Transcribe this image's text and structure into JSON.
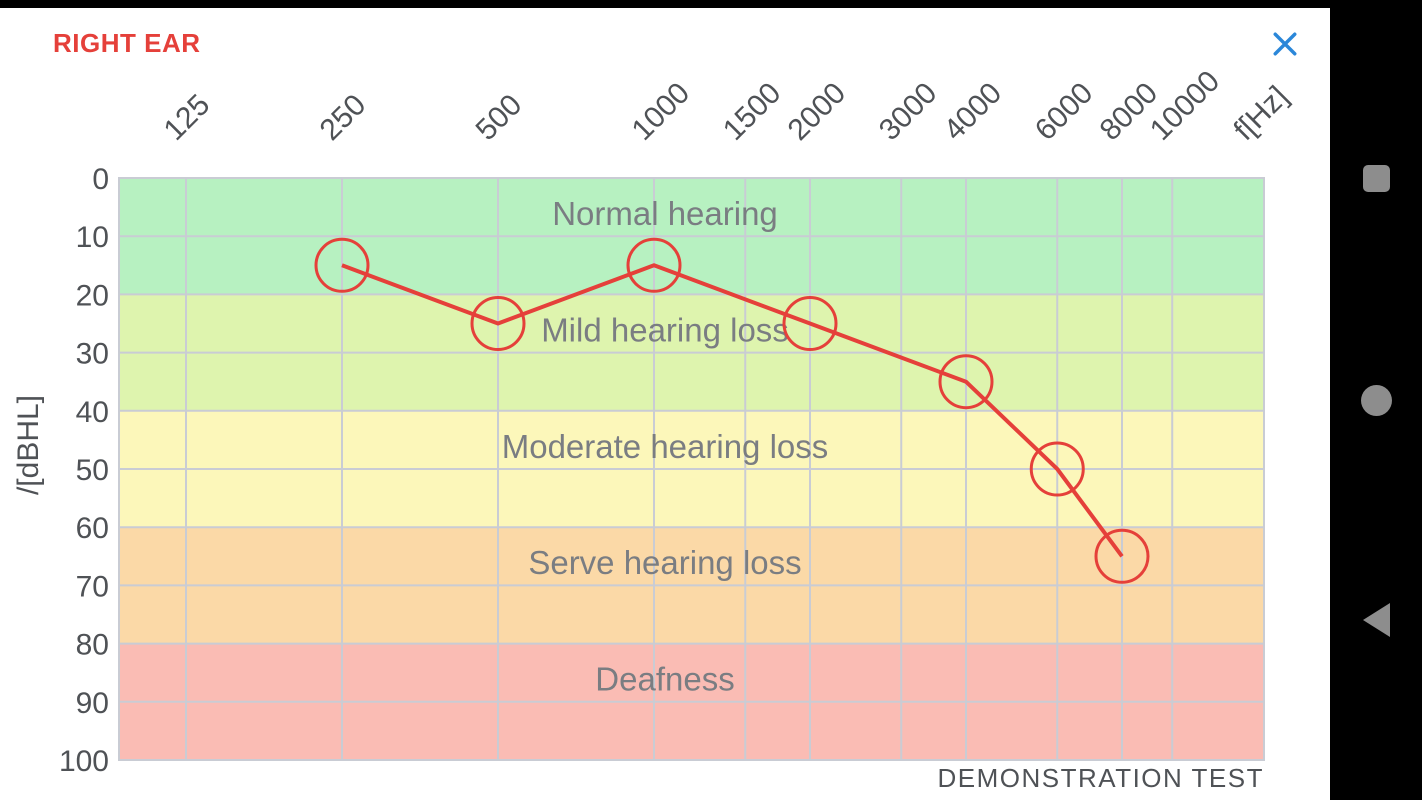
{
  "header": {
    "title": "RIGHT EAR",
    "title_color": "#e5403a",
    "close_icon": "x-close",
    "close_color": "#2b87d9"
  },
  "footer": {
    "note": "DEMONSTRATION TEST"
  },
  "nav_bar": {
    "background": "#000000",
    "icon_color": "#8d8d8d",
    "items": [
      {
        "name": "recents",
        "icon": "square-icon"
      },
      {
        "name": "home",
        "icon": "circle-icon"
      },
      {
        "name": "back",
        "icon": "triangle-left-icon"
      }
    ]
  },
  "chart_data": {
    "type": "line",
    "title": "",
    "xlabel": "f[Hz]",
    "ylabel": "/[dBHL]",
    "x_scale": "log",
    "x_ticks": [
      125,
      250,
      500,
      1000,
      1500,
      2000,
      3000,
      4000,
      6000,
      8000,
      10000
    ],
    "y_ticks": [
      0,
      10,
      20,
      30,
      40,
      50,
      60,
      70,
      80,
      90,
      100
    ],
    "ylim": [
      0,
      100
    ],
    "y_increases_downward": true,
    "grid": true,
    "grid_color": "#c9ccd4",
    "tick_color": "#4f5256",
    "band_label_color": "#7a7d82",
    "bands": [
      {
        "label": "Normal hearing",
        "from": 0,
        "to": 20,
        "color": "#b7f1c1"
      },
      {
        "label": "Mild hearing loss",
        "from": 20,
        "to": 40,
        "color": "#def4ae"
      },
      {
        "label": "Moderate hearing loss",
        "from": 40,
        "to": 60,
        "color": "#fcf7ba"
      },
      {
        "label": "Serve hearing loss",
        "from": 60,
        "to": 80,
        "color": "#fbd9a7"
      },
      {
        "label": "Deafness",
        "from": 80,
        "to": 100,
        "color": "#fabcb4"
      }
    ],
    "series": [
      {
        "name": "right-ear-threshold",
        "color": "#e5403a",
        "marker": "open-circle",
        "points": [
          {
            "f": 250,
            "dbhl": 15
          },
          {
            "f": 500,
            "dbhl": 25
          },
          {
            "f": 1000,
            "dbhl": 15
          },
          {
            "f": 2000,
            "dbhl": 25
          },
          {
            "f": 4000,
            "dbhl": 35
          },
          {
            "f": 6000,
            "dbhl": 50
          },
          {
            "f": 8000,
            "dbhl": 65
          }
        ]
      }
    ]
  }
}
